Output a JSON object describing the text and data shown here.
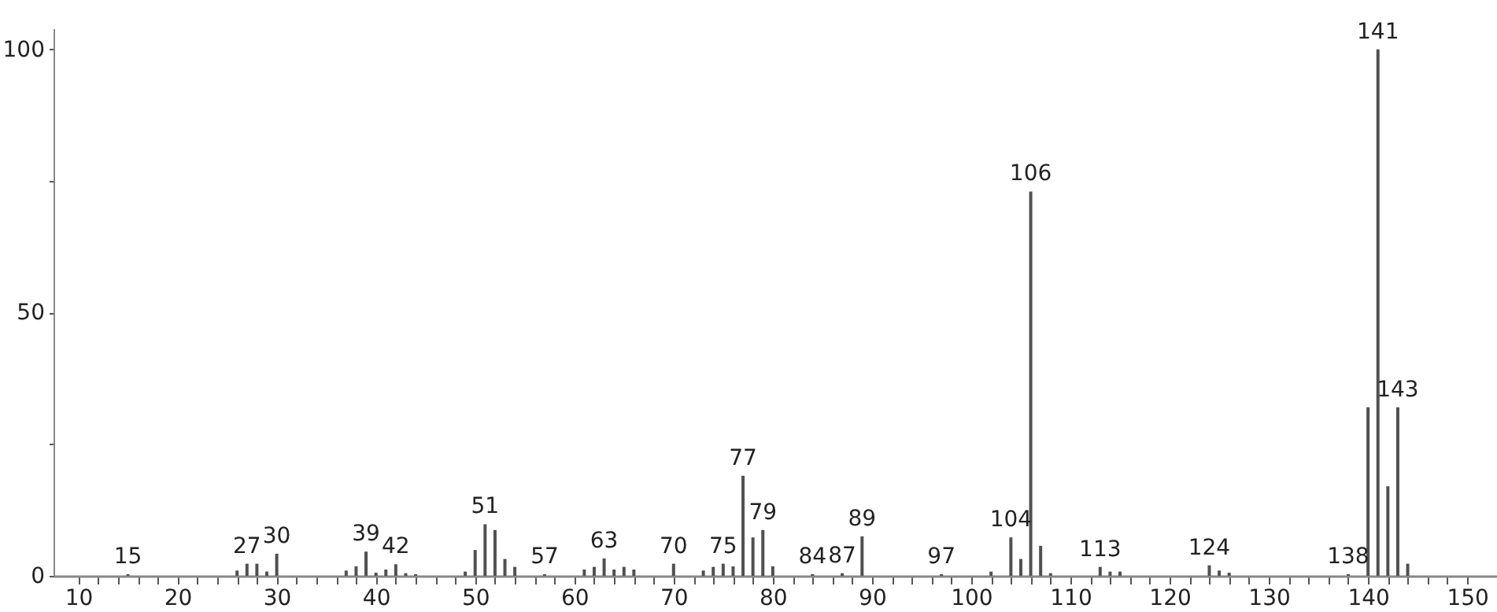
{
  "chart_data": {
    "type": "bar",
    "x": [
      15,
      26,
      27,
      28,
      29,
      30,
      37,
      38,
      39,
      40,
      41,
      42,
      43,
      44,
      49,
      50,
      51,
      52,
      53,
      54,
      57,
      61,
      62,
      63,
      64,
      65,
      66,
      70,
      73,
      74,
      75,
      76,
      77,
      78,
      79,
      80,
      84,
      87,
      89,
      97,
      102,
      104,
      105,
      106,
      107,
      108,
      113,
      114,
      115,
      124,
      125,
      126,
      138,
      140,
      141,
      142,
      143,
      144
    ],
    "series": [
      {
        "color": "#505050",
        "values": [
          0.3,
          1,
          2.3,
          2.3,
          0.8,
          4.2,
          1,
          1.8,
          4.6,
          0.6,
          1.2,
          2.2,
          0.5,
          0.3,
          0.8,
          4.9,
          9.8,
          8.7,
          3.2,
          1.7,
          0.3,
          1.2,
          1.7,
          3.3,
          1.2,
          1.7,
          1.2,
          2.3,
          1,
          1.7,
          2.3,
          1.8,
          19,
          7.3,
          8.7,
          1.8,
          0.3,
          0.5,
          7.5,
          0.3,
          0.8,
          7.3,
          3.2,
          73,
          5.7,
          0.5,
          1.7,
          0.8,
          0.8,
          2,
          1,
          0.6,
          0.3,
          32,
          100,
          17,
          32,
          2.3
        ]
      }
    ],
    "annotations": [
      {
        "text": "15",
        "x": 15,
        "y": 0.3
      },
      {
        "text": "27",
        "x": 27,
        "y": 2.3
      },
      {
        "text": "30",
        "x": 30,
        "y": 4.2
      },
      {
        "text": "39",
        "x": 39,
        "y": 4.6
      },
      {
        "text": "42",
        "x": 42,
        "y": 2.2
      },
      {
        "text": "51",
        "x": 51,
        "y": 9.8
      },
      {
        "text": "57",
        "x": 57,
        "y": 0.3
      },
      {
        "text": "63",
        "x": 63,
        "y": 3.3
      },
      {
        "text": "70",
        "x": 70,
        "y": 2.3
      },
      {
        "text": "75",
        "x": 75,
        "y": 2.3
      },
      {
        "text": "77",
        "x": 77,
        "y": 19
      },
      {
        "text": "79",
        "x": 79,
        "y": 8.7
      },
      {
        "text": "84",
        "x": 84,
        "y": 0.3
      },
      {
        "text": "87",
        "x": 87,
        "y": 0.5
      },
      {
        "text": "89",
        "x": 89,
        "y": 7.5
      },
      {
        "text": "97",
        "x": 97,
        "y": 0.3
      },
      {
        "text": "104",
        "x": 104,
        "y": 7.3
      },
      {
        "text": "106",
        "x": 106,
        "y": 73
      },
      {
        "text": "113",
        "x": 113,
        "y": 1.7
      },
      {
        "text": "124",
        "x": 124,
        "y": 2
      },
      {
        "text": "138",
        "x": 138,
        "y": 0.3
      },
      {
        "text": "141",
        "x": 141,
        "y": 100
      },
      {
        "text": "143",
        "x": 143,
        "y": 32
      }
    ],
    "xlim": [
      7.5,
      153
    ],
    "ylim": [
      0,
      104
    ],
    "xticks": [
      10,
      {
        "value": 12,
        "label": null
      },
      {
        "value": 14,
        "label": null
      },
      {
        "value": 16,
        "label": null
      },
      {
        "value": 18,
        "label": null
      },
      20,
      {
        "value": 22,
        "label": null
      },
      {
        "value": 24,
        "label": null
      },
      {
        "value": 26,
        "label": null
      },
      {
        "value": 28,
        "label": null
      },
      30,
      {
        "value": 32,
        "label": null
      },
      {
        "value": 34,
        "label": null
      },
      {
        "value": 36,
        "label": null
      },
      {
        "value": 38,
        "label": null
      },
      40,
      {
        "value": 42,
        "label": null
      },
      {
        "value": 44,
        "label": null
      },
      {
        "value": 46,
        "label": null
      },
      {
        "value": 48,
        "label": null
      },
      50,
      {
        "value": 52,
        "label": null
      },
      {
        "value": 54,
        "label": null
      },
      {
        "value": 56,
        "label": null
      },
      {
        "value": 58,
        "label": null
      },
      60,
      {
        "value": 62,
        "label": null
      },
      {
        "value": 64,
        "label": null
      },
      {
        "value": 66,
        "label": null
      },
      {
        "value": 68,
        "label": null
      },
      70,
      {
        "value": 72,
        "label": null
      },
      {
        "value": 74,
        "label": null
      },
      {
        "value": 76,
        "label": null
      },
      {
        "value": 78,
        "label": null
      },
      80,
      {
        "value": 82,
        "label": null
      },
      {
        "value": 84,
        "label": null
      },
      {
        "value": 86,
        "label": null
      },
      {
        "value": 88,
        "label": null
      },
      90,
      {
        "value": 92,
        "label": null
      },
      {
        "value": 94,
        "label": null
      },
      {
        "value": 96,
        "label": null
      },
      {
        "value": 98,
        "label": null
      },
      100,
      {
        "value": 102,
        "label": null
      },
      {
        "value": 104,
        "label": null
      },
      {
        "value": 106,
        "label": null
      },
      {
        "value": 108,
        "label": null
      },
      110,
      {
        "value": 112,
        "label": null
      },
      {
        "value": 114,
        "label": null
      },
      {
        "value": 116,
        "label": null
      },
      {
        "value": 118,
        "label": null
      },
      120,
      {
        "value": 122,
        "label": null
      },
      {
        "value": 124,
        "label": null
      },
      {
        "value": 126,
        "label": null
      },
      {
        "value": 128,
        "label": null
      },
      130,
      {
        "value": 132,
        "label": null
      },
      {
        "value": 134,
        "label": null
      },
      {
        "value": 136,
        "label": null
      },
      {
        "value": 138,
        "label": null
      },
      140,
      {
        "value": 142,
        "label": null
      },
      {
        "value": 144,
        "label": null
      },
      {
        "value": 146,
        "label": null
      },
      {
        "value": 148,
        "label": null
      },
      150
    ],
    "yticks": [
      0,
      {
        "value": 25,
        "label": null
      },
      50,
      {
        "value": 75,
        "label": null
      },
      100
    ]
  }
}
